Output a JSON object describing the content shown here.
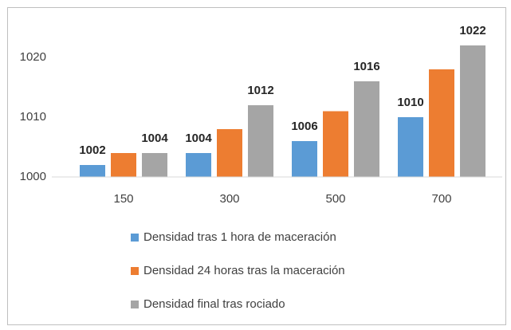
{
  "chart_data": {
    "type": "bar",
    "categories": [
      "150",
      "300",
      "500",
      "700"
    ],
    "series": [
      {
        "name": "Densidad tras 1 hora de maceración",
        "color": "#5b9bd5",
        "values": [
          1002,
          1004,
          1006,
          1010
        ],
        "labels": true
      },
      {
        "name": "Densidad 24 horas tras la maceración",
        "color": "#ed7d31",
        "values": [
          1004,
          1008,
          1011,
          1018
        ],
        "labels": false
      },
      {
        "name": "Densidad final tras rociado",
        "color": "#a5a5a5",
        "values": [
          1004,
          1012,
          1016,
          1022
        ],
        "labels": true
      }
    ],
    "ylim": [
      1000,
      1025
    ],
    "yticks": [
      1000,
      1010,
      1020
    ],
    "grid": false,
    "legend": "bottom"
  }
}
